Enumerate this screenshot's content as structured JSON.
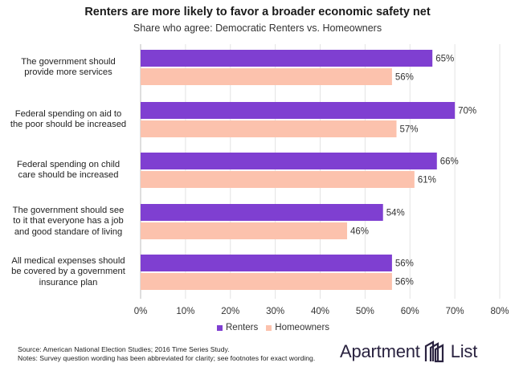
{
  "chart_data": {
    "type": "bar",
    "orientation": "horizontal",
    "title": "Renters are more likely to favor a broader economic safety net",
    "subtitle": "Share who agree: Democratic Renters vs. Homeowners",
    "categories": [
      [
        "The government should",
        "provide more services"
      ],
      [
        "Federal spending on aid to",
        "the poor should be increased"
      ],
      [
        "Federal spending on child",
        "care should be increased"
      ],
      [
        "The government should see",
        "to it that everyone has a job",
        "and good standare of living"
      ],
      [
        "All medical expenses should",
        "be covered by a government",
        "insurance plan"
      ]
    ],
    "series": [
      {
        "name": "Renters",
        "values": [
          65,
          70,
          66,
          54,
          56
        ],
        "color": "#7f3fd1"
      },
      {
        "name": "Homeowners",
        "values": [
          56,
          57,
          61,
          46,
          56
        ],
        "color": "#fcc2ad"
      }
    ],
    "xlim": [
      0,
      80
    ],
    "xticks": [
      "0%",
      "10%",
      "20%",
      "30%",
      "40%",
      "50%",
      "60%",
      "70%",
      "80%"
    ],
    "value_suffix": "%",
    "grid": "vertical",
    "legend_position": "bottom"
  },
  "footer": {
    "source": "Source: American National Election Studies; 2016 Time Series Study.",
    "notes": "Notes: Survey question wording has been abbreviated for clarity; see footnotes for exact wording."
  },
  "logo": {
    "text": "Apartment",
    "text2": "List",
    "icon": "apartment-list-logo-icon"
  }
}
